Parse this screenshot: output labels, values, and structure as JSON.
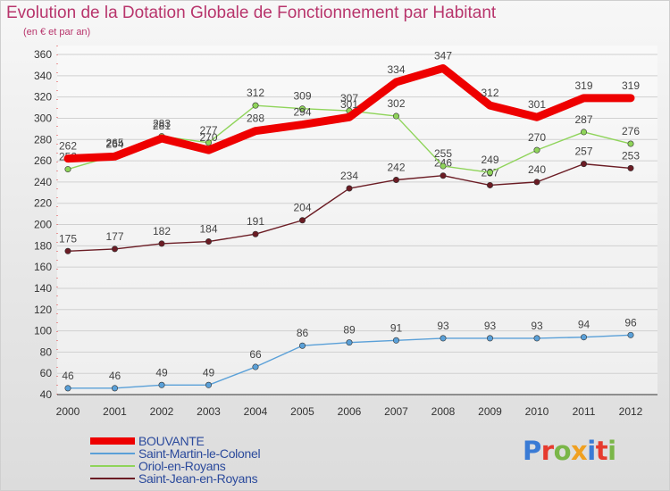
{
  "title": "Evolution de la Dotation Globale de Fonctionnement par Habitant",
  "subtitle": "(en € et par an)",
  "logo": {
    "text": "Proxiti",
    "colors": [
      "#3a7bd5",
      "#e63b2e",
      "#7ab648",
      "#f0a020",
      "#3a7bd5",
      "#e63b2e",
      "#7ab648"
    ]
  },
  "chart_data": {
    "type": "line",
    "title": "Evolution de la Dotation Globale de Fonctionnement par Habitant",
    "ylabel": "(en € et par an)",
    "xlabel": "",
    "ylim": [
      40,
      360
    ],
    "yticks": [
      40,
      60,
      80,
      100,
      120,
      140,
      160,
      180,
      200,
      220,
      240,
      260,
      280,
      300,
      320,
      340,
      360
    ],
    "categories": [
      "2000",
      "2001",
      "2002",
      "2003",
      "2004",
      "2005",
      "2006",
      "2007",
      "2008",
      "2009",
      "2010",
      "2011",
      "2012"
    ],
    "series": [
      {
        "name": "Saint-Jean-en-Royans",
        "color": "#6b1c24",
        "values": [
          175,
          177,
          182,
          184,
          191,
          204,
          234,
          242,
          246,
          237,
          240,
          257,
          253
        ]
      },
      {
        "name": "Saint-Martin-le-Colonel",
        "color": "#5aa0d8",
        "values": [
          46,
          46,
          49,
          49,
          66,
          86,
          89,
          91,
          93,
          93,
          93,
          94,
          96
        ]
      },
      {
        "name": "Oriol-en-Royans",
        "color": "#8fd45a",
        "values": [
          252,
          265,
          283,
          277,
          312,
          309,
          307,
          302,
          255,
          249,
          270,
          287,
          276
        ]
      },
      {
        "name": "BOUVANTE",
        "color": "#ee0000",
        "values": [
          262,
          264,
          281,
          270,
          288,
          294,
          301,
          334,
          347,
          312,
          301,
          319,
          319
        ]
      }
    ]
  },
  "legend": [
    {
      "name": "BOUVANTE",
      "color": "#ee0000"
    },
    {
      "name": "Saint-Martin-le-Colonel",
      "color": "#5aa0d8"
    },
    {
      "name": "Oriol-en-Royans",
      "color": "#8fd45a"
    },
    {
      "name": "Saint-Jean-en-Royans",
      "color": "#6b1c24"
    }
  ]
}
